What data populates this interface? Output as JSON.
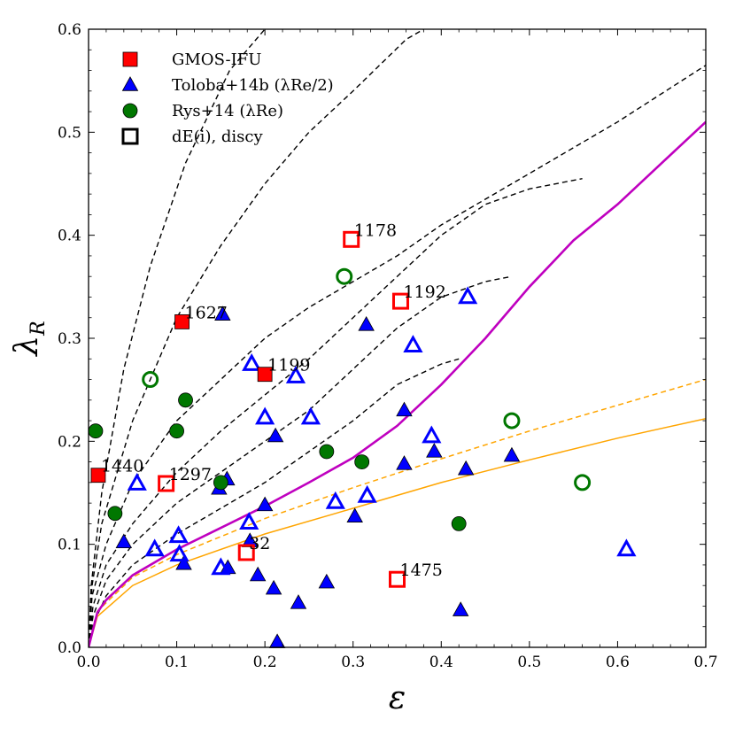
{
  "chart_data": {
    "type": "scatter",
    "title": "",
    "xlabel": "ε",
    "ylabel": "λ",
    "ylabel_sub": "R",
    "xlim": [
      0.0,
      0.7
    ],
    "ylim": [
      0.0,
      0.6
    ],
    "xticks": [
      "0.0",
      "0.1",
      "0.2",
      "0.3",
      "0.4",
      "0.5",
      "0.6",
      "0.7"
    ],
    "yticks": [
      "0.0",
      "0.1",
      "0.2",
      "0.3",
      "0.4",
      "0.5",
      "0.6"
    ],
    "legend": [
      {
        "label": "GMOS-IFU",
        "marker": "filled-square",
        "color": "#ff0000"
      },
      {
        "label": "Toloba+14b (λRe/2)",
        "marker": "filled-triangle",
        "color": "#0000ff"
      },
      {
        "label": "Rys+14 (λRe)",
        "marker": "filled-circle",
        "color": "#007700"
      },
      {
        "label": "dE(i), discy",
        "marker": "open-square",
        "color": "#000000"
      }
    ],
    "colors": {
      "gmos": "#ff0000",
      "toloba": "#0000ff",
      "rys": "#007700",
      "isotropic": "#bf00bf",
      "orange": "#ffa500"
    },
    "gmos_filled": [
      {
        "x": 0.011,
        "y": 0.167,
        "label": "1440"
      },
      {
        "x": 0.106,
        "y": 0.316,
        "label": "1627"
      },
      {
        "x": 0.2,
        "y": 0.265,
        "label": "1199"
      }
    ],
    "gmos_open": [
      {
        "x": 0.298,
        "y": 0.396,
        "label": "1178"
      },
      {
        "x": 0.354,
        "y": 0.336,
        "label": "1192"
      },
      {
        "x": 0.088,
        "y": 0.159,
        "label": "1297"
      },
      {
        "x": 0.179,
        "y": 0.092,
        "label": "32"
      },
      {
        "x": 0.35,
        "y": 0.066,
        "label": "1475"
      }
    ],
    "toloba_filled": [
      [
        0.04,
        0.102
      ],
      [
        0.108,
        0.081
      ],
      [
        0.148,
        0.154
      ],
      [
        0.152,
        0.323
      ],
      [
        0.158,
        0.077
      ],
      [
        0.157,
        0.163
      ],
      [
        0.183,
        0.103
      ],
      [
        0.192,
        0.07
      ],
      [
        0.2,
        0.138
      ],
      [
        0.21,
        0.057
      ],
      [
        0.212,
        0.205
      ],
      [
        0.214,
        0.005
      ],
      [
        0.238,
        0.043
      ],
      [
        0.27,
        0.063
      ],
      [
        0.302,
        0.127
      ],
      [
        0.315,
        0.313
      ],
      [
        0.358,
        0.23
      ],
      [
        0.358,
        0.178
      ],
      [
        0.392,
        0.19
      ],
      [
        0.422,
        0.036
      ],
      [
        0.428,
        0.173
      ],
      [
        0.48,
        0.186
      ]
    ],
    "toloba_open": [
      [
        0.055,
        0.159
      ],
      [
        0.075,
        0.095
      ],
      [
        0.102,
        0.108
      ],
      [
        0.103,
        0.09
      ],
      [
        0.15,
        0.077
      ],
      [
        0.182,
        0.121
      ],
      [
        0.185,
        0.275
      ],
      [
        0.2,
        0.223
      ],
      [
        0.235,
        0.263
      ],
      [
        0.252,
        0.223
      ],
      [
        0.28,
        0.141
      ],
      [
        0.316,
        0.147
      ],
      [
        0.368,
        0.293
      ],
      [
        0.389,
        0.205
      ],
      [
        0.43,
        0.34
      ],
      [
        0.61,
        0.095
      ]
    ],
    "rys_filled": [
      [
        0.008,
        0.21
      ],
      [
        0.03,
        0.13
      ],
      [
        0.1,
        0.21
      ],
      [
        0.11,
        0.24
      ],
      [
        0.15,
        0.16
      ],
      [
        0.27,
        0.19
      ],
      [
        0.31,
        0.18
      ],
      [
        0.42,
        0.12
      ]
    ],
    "rys_open": [
      [
        0.07,
        0.26
      ],
      [
        0.29,
        0.36
      ],
      [
        0.48,
        0.22
      ],
      [
        0.56,
        0.16
      ]
    ],
    "curves": {
      "isotropic_magenta": [
        [
          0.0,
          0.0
        ],
        [
          0.01,
          0.034
        ],
        [
          0.02,
          0.046
        ],
        [
          0.05,
          0.07
        ],
        [
          0.1,
          0.095
        ],
        [
          0.15,
          0.116
        ],
        [
          0.2,
          0.137
        ],
        [
          0.25,
          0.16
        ],
        [
          0.3,
          0.184
        ],
        [
          0.35,
          0.215
        ],
        [
          0.4,
          0.255
        ],
        [
          0.45,
          0.3
        ],
        [
          0.5,
          0.35
        ],
        [
          0.55,
          0.395
        ],
        [
          0.6,
          0.43
        ],
        [
          0.65,
          0.47
        ],
        [
          0.7,
          0.51
        ]
      ],
      "orange_solid": [
        [
          0.0,
          0.0
        ],
        [
          0.01,
          0.03
        ],
        [
          0.05,
          0.06
        ],
        [
          0.1,
          0.08
        ],
        [
          0.2,
          0.11
        ],
        [
          0.3,
          0.135
        ],
        [
          0.4,
          0.16
        ],
        [
          0.5,
          0.182
        ],
        [
          0.6,
          0.203
        ],
        [
          0.7,
          0.222
        ]
      ],
      "orange_dashed": [
        [
          0.0,
          0.0
        ],
        [
          0.01,
          0.035
        ],
        [
          0.05,
          0.068
        ],
        [
          0.1,
          0.09
        ],
        [
          0.2,
          0.125
        ],
        [
          0.3,
          0.155
        ],
        [
          0.4,
          0.183
        ],
        [
          0.5,
          0.21
        ],
        [
          0.6,
          0.235
        ],
        [
          0.7,
          0.26
        ]
      ],
      "dashed_family": [
        [
          [
            0.0,
            0.0
          ],
          [
            0.003,
            0.06
          ],
          [
            0.015,
            0.15
          ],
          [
            0.04,
            0.27
          ],
          [
            0.07,
            0.37
          ],
          [
            0.11,
            0.47
          ],
          [
            0.16,
            0.56
          ],
          [
            0.2,
            0.6
          ]
        ],
        [
          [
            0.0,
            0.0
          ],
          [
            0.004,
            0.06
          ],
          [
            0.015,
            0.12
          ],
          [
            0.05,
            0.22
          ],
          [
            0.1,
            0.32
          ],
          [
            0.15,
            0.39
          ],
          [
            0.2,
            0.45
          ],
          [
            0.25,
            0.5
          ],
          [
            0.3,
            0.54
          ],
          [
            0.36,
            0.59
          ],
          [
            0.38,
            0.6
          ]
        ],
        [
          [
            0.0,
            0.0
          ],
          [
            0.004,
            0.05
          ],
          [
            0.02,
            0.1
          ],
          [
            0.05,
            0.16
          ],
          [
            0.1,
            0.22
          ],
          [
            0.15,
            0.26
          ],
          [
            0.2,
            0.3
          ],
          [
            0.25,
            0.33
          ],
          [
            0.3,
            0.355
          ],
          [
            0.35,
            0.38
          ],
          [
            0.4,
            0.41
          ],
          [
            0.5,
            0.46
          ],
          [
            0.6,
            0.51
          ],
          [
            0.7,
            0.565
          ]
        ],
        [
          [
            0.0,
            0.0
          ],
          [
            0.005,
            0.04
          ],
          [
            0.02,
            0.08
          ],
          [
            0.05,
            0.12
          ],
          [
            0.1,
            0.17
          ],
          [
            0.15,
            0.21
          ],
          [
            0.2,
            0.245
          ],
          [
            0.25,
            0.28
          ],
          [
            0.3,
            0.32
          ],
          [
            0.35,
            0.36
          ],
          [
            0.4,
            0.4
          ],
          [
            0.45,
            0.43
          ],
          [
            0.5,
            0.445
          ],
          [
            0.56,
            0.455
          ]
        ],
        [
          [
            0.0,
            0.0
          ],
          [
            0.005,
            0.03
          ],
          [
            0.02,
            0.065
          ],
          [
            0.05,
            0.1
          ],
          [
            0.1,
            0.14
          ],
          [
            0.15,
            0.17
          ],
          [
            0.2,
            0.2
          ],
          [
            0.25,
            0.23
          ],
          [
            0.3,
            0.27
          ],
          [
            0.35,
            0.31
          ],
          [
            0.4,
            0.34
          ],
          [
            0.45,
            0.355
          ],
          [
            0.48,
            0.36
          ]
        ],
        [
          [
            0.0,
            0.0
          ],
          [
            0.005,
            0.022
          ],
          [
            0.02,
            0.05
          ],
          [
            0.05,
            0.08
          ],
          [
            0.1,
            0.11
          ],
          [
            0.15,
            0.135
          ],
          [
            0.2,
            0.16
          ],
          [
            0.25,
            0.19
          ],
          [
            0.3,
            0.22
          ],
          [
            0.35,
            0.255
          ],
          [
            0.4,
            0.275
          ],
          [
            0.42,
            0.28
          ]
        ]
      ]
    }
  }
}
